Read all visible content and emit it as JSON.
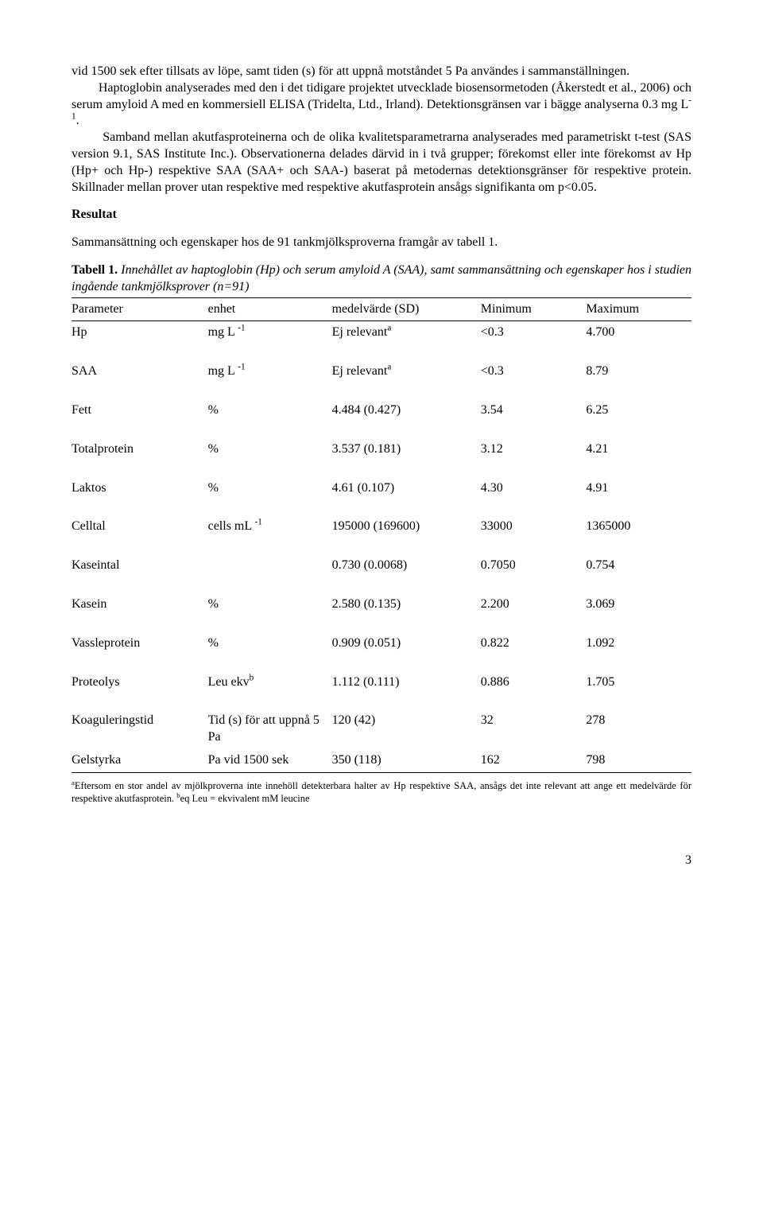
{
  "paragraphs": {
    "p1a": "vid 1500 sek efter tillsats av löpe, samt tiden (s) för att uppnå motståndet 5 Pa användes i sammanställningen.",
    "p1b_indent": "Haptoglobin analyserades med den i det tidigare projektet utvecklade biosensormetoden (Åkerstedt et al., 2006) och serum amyloid A med en kommersiell ELISA (Tridelta, Ltd., Irland). Detektionsgränsen var i bägge analyserna 0.3 mg L",
    "p1b_sup": "-1",
    "p1b_after": ".",
    "p1c_indent": "Samband mellan akutfasproteinerna och de olika kvalitetsparametrarna analyserades med parametriskt t-test (SAS version 9.1, SAS Institute Inc.). Observationerna delades därvid in i två grupper; förekomst eller inte förekomst av Hp (Hp+ och Hp-) respektive SAA (SAA+ och SAA-) baserat på metodernas detektionsgränser för respektive protein. Skillnader mellan prover utan respektive med respektive akutfasprotein ansågs signifikanta om p<0.05."
  },
  "section_heading": "Resultat",
  "intro_sentence": "Sammansättning och egenskaper hos de 91 tankmjölksproverna framgår av tabell 1.",
  "table_caption": {
    "label": "Tabell 1.",
    "italic": " Innehållet av haptoglobin (Hp) och serum amyloid A (SAA), samt sammansättning och egenskaper hos i studien ingående tankmjölksprover (n=91)"
  },
  "table": {
    "headers": [
      "Parameter",
      "enhet",
      "medelvärde (SD)",
      "Minimum",
      "Maximum"
    ],
    "rows": [
      {
        "param": "Hp",
        "unit_pre": "mg L ",
        "unit_sup": "-1",
        "mean_pre": "Ej relevant",
        "mean_sup": "a",
        "min": "<0.3",
        "max": "4.700"
      },
      {
        "param": "SAA",
        "unit_pre": "mg L ",
        "unit_sup": "-1",
        "mean_pre": "Ej relevant",
        "mean_sup": "a",
        "min": "<0.3",
        "max": "8.79"
      },
      {
        "param": "Fett",
        "unit_pre": "%",
        "unit_sup": "",
        "mean_pre": "4.484 (0.427)",
        "mean_sup": "",
        "min": "3.54",
        "max": "6.25"
      },
      {
        "param": "Totalprotein",
        "unit_pre": "%",
        "unit_sup": "",
        "mean_pre": "3.537 (0.181)",
        "mean_sup": "",
        "min": "3.12",
        "max": "4.21"
      },
      {
        "param": "Laktos",
        "unit_pre": "%",
        "unit_sup": "",
        "mean_pre": "4.61 (0.107)",
        "mean_sup": "",
        "min": "4.30",
        "max": "4.91"
      },
      {
        "param": "Celltal",
        "unit_pre": "cells mL ",
        "unit_sup": "-1",
        "mean_pre": "195000 (169600)",
        "mean_sup": "",
        "min": "33000",
        "max": "1365000"
      },
      {
        "param": "Kaseintal",
        "unit_pre": "",
        "unit_sup": "",
        "mean_pre": "0.730 (0.0068)",
        "mean_sup": "",
        "min": "0.7050",
        "max": "0.754"
      },
      {
        "param": "Kasein",
        "unit_pre": "%",
        "unit_sup": "",
        "mean_pre": "2.580 (0.135)",
        "mean_sup": "",
        "min": "2.200",
        "max": "3.069"
      },
      {
        "param": "Vassleprotein",
        "unit_pre": "%",
        "unit_sup": "",
        "mean_pre": "0.909 (0.051)",
        "mean_sup": "",
        "min": "0.822",
        "max": "1.092"
      },
      {
        "param": "Proteolys",
        "unit_pre": "Leu ekv",
        "unit_sup": "b",
        "mean_pre": "1.112 (0.111)",
        "mean_sup": "",
        "min": "0.886",
        "max": "1.705"
      },
      {
        "param": "Koaguleringstid",
        "unit_pre": "Tid (s) för att uppnå 5 Pa",
        "unit_sup": "",
        "mean_pre": "120 (42)",
        "mean_sup": "",
        "min": "32",
        "max": "278"
      },
      {
        "param": "Gelstyrka",
        "unit_pre": "Pa vid 1500 sek",
        "unit_sup": "",
        "mean_pre": "350 (118)",
        "mean_sup": "",
        "min": "162",
        "max": "798",
        "no_spacer": true
      }
    ]
  },
  "footnote": {
    "a_sup": "a",
    "a_text": "Eftersom en stor andel av mjölkproverna inte innehöll detekterbara halter av Hp respektive SAA, ansågs det inte relevant att ange ett medelvärde för respektive akutfasprotein. ",
    "b_sup": "b",
    "b_text": "eq Leu = ekvivalent mM leucine"
  },
  "page_number": "3"
}
